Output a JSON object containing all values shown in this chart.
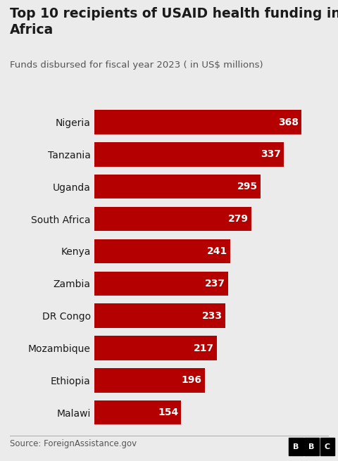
{
  "title": "Top 10 recipients of USAID health funding in\nAfrica",
  "subtitle": "Funds disbursed for fiscal year 2023 ( in US$ millions)",
  "source": "Source: ForeignAssistance.gov",
  "categories": [
    "Nigeria",
    "Tanzania",
    "Uganda",
    "South Africa",
    "Kenya",
    "Zambia",
    "DR Congo",
    "Mozambique",
    "Ethiopia",
    "Malawi"
  ],
  "values": [
    368,
    337,
    295,
    279,
    241,
    237,
    233,
    217,
    196,
    154
  ],
  "bar_color": "#b50000",
  "label_color": "#ffffff",
  "title_color": "#1a1a1a",
  "subtitle_color": "#555555",
  "source_color": "#555555",
  "background_color": "#ebebeb",
  "title_fontsize": 13.5,
  "subtitle_fontsize": 9.5,
  "label_fontsize": 10,
  "category_fontsize": 10,
  "source_fontsize": 8.5,
  "bbc_box_color": "#000000",
  "bbc_text_color": "#ffffff",
  "xlim": [
    0,
    415
  ]
}
